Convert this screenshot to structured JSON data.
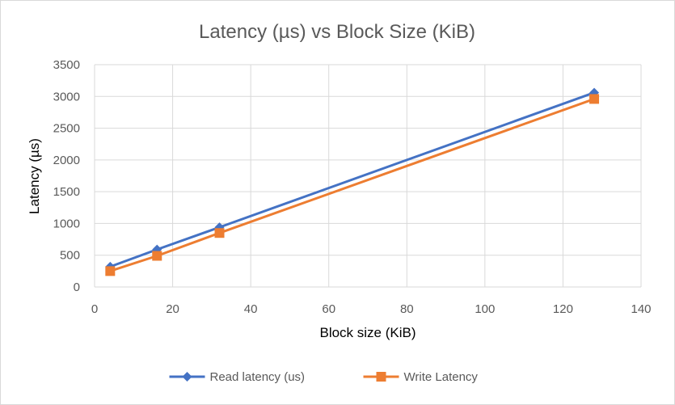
{
  "chart_data": {
    "type": "line",
    "title": "Latency (µs) vs Block Size (KiB)",
    "xlabel": "Block size (KiB)",
    "ylabel": "Latency (µs)",
    "xlim": [
      0,
      140
    ],
    "ylim": [
      0,
      3500
    ],
    "xticks": [
      0,
      20,
      40,
      60,
      80,
      100,
      120,
      140
    ],
    "yticks": [
      0,
      500,
      1000,
      1500,
      2000,
      2500,
      3000,
      3500
    ],
    "grid": true,
    "legend_position": "bottom",
    "series": [
      {
        "name": "Read latency (us)",
        "color": "#4472C4",
        "marker": "diamond",
        "x": [
          4,
          16,
          32,
          128
        ],
        "y": [
          320,
          590,
          940,
          3060
        ]
      },
      {
        "name": "Write Latency",
        "color": "#ED7D31",
        "marker": "square",
        "x": [
          4,
          16,
          32,
          128
        ],
        "y": [
          250,
          490,
          850,
          2960
        ]
      }
    ]
  }
}
